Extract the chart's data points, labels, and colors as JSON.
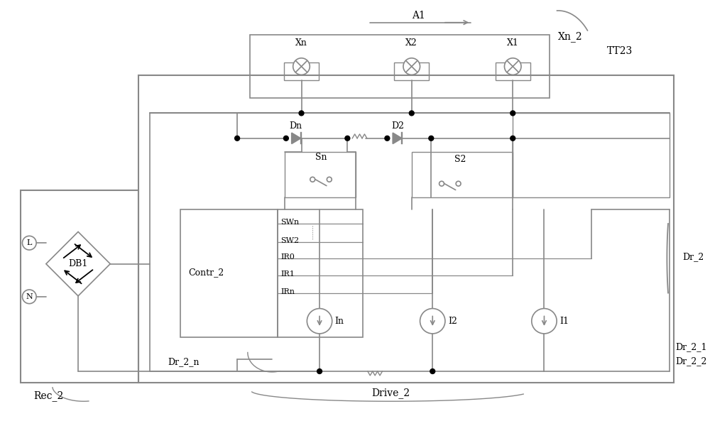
{
  "bg_color": "#ffffff",
  "line_color": "#888888",
  "black": "#000000",
  "labels": {
    "A1": "A1",
    "Xn_2": "Xn_2",
    "TT23": "TT23",
    "Xn": "Xn",
    "X2": "X2",
    "X1": "X1",
    "Dn": "Dn",
    "D2": "D2",
    "Sn": "Sn",
    "S2": "S2",
    "SWn": "SWn",
    "SW2": "SW2",
    "IR0": "IR0",
    "IR1": "IR1",
    "IRn": "IRn",
    "Contr_2": "Contr_2",
    "In": "In",
    "I2": "I2",
    "I1": "I1",
    "L": "L",
    "N": "N",
    "DB1": "DB1",
    "Dr_2_n": "Dr_2_n",
    "Dr_2": "Dr_2",
    "Dr_2_1": "Dr_2_1",
    "Dr_2_2": "Dr_2_2",
    "Drive_2": "Drive_2",
    "Rec_2": "Rec_2"
  }
}
